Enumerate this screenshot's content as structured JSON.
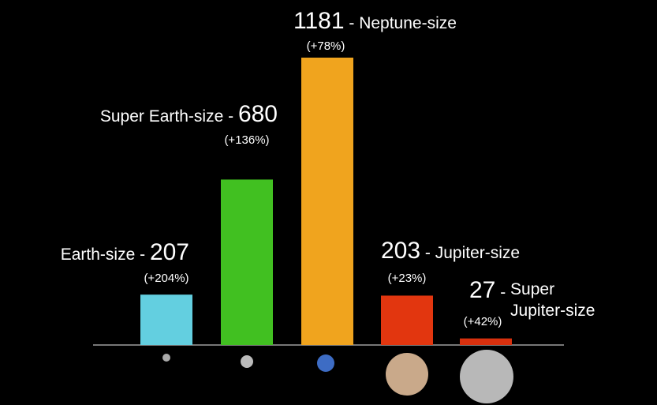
{
  "chart_data": {
    "type": "bar",
    "categories": [
      "Earth-size",
      "Super Earth-size",
      "Neptune-size",
      "Jupiter-size",
      "Super Jupiter-size"
    ],
    "values": [
      207,
      680,
      1181,
      203,
      27
    ],
    "change_labels": [
      "(+204%)",
      "(+136%)",
      "(+78%)",
      "(+23%)",
      "(+42%)"
    ],
    "colors": [
      "#63cfe0",
      "#41c021",
      "#f0a41e",
      "#e2360f",
      "#d8300e"
    ]
  }
}
